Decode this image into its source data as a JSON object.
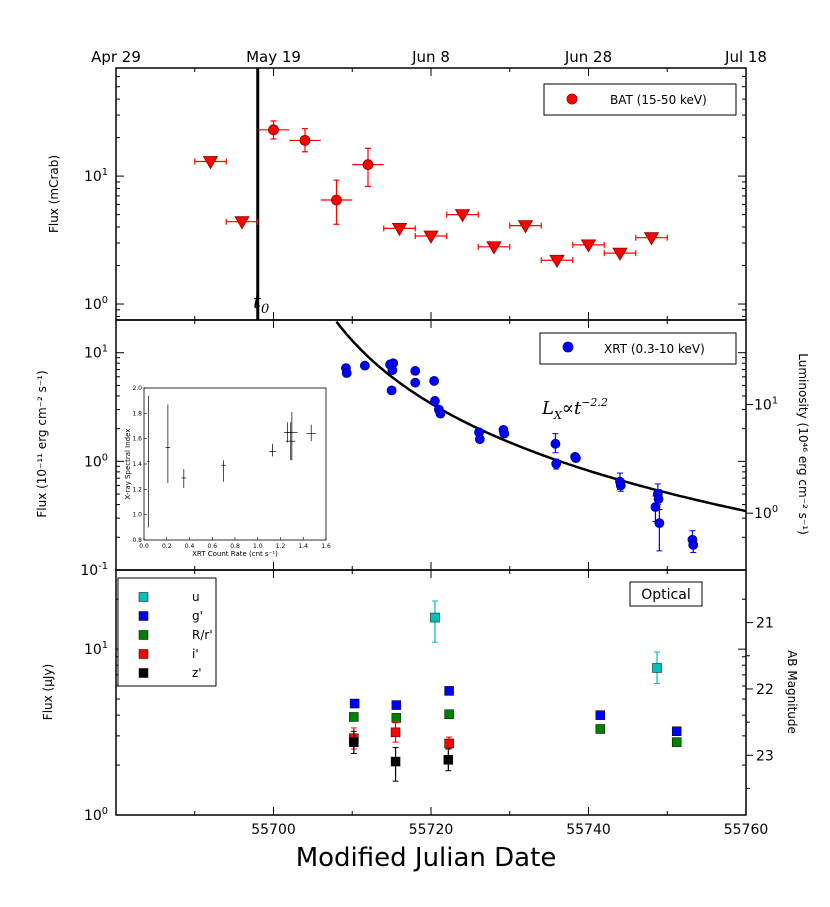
{
  "colors": {
    "bat": "#ff0000",
    "bat_edge": "#8b0000",
    "xrt": "#0000ff",
    "u": "#00bfbf",
    "g": "#0000ff",
    "r": "#008000",
    "i": "#ff0000",
    "z": "#000000"
  },
  "chart_data": [
    {
      "id": "bat",
      "type": "scatter",
      "ylabel": "Flux (mCrab)",
      "yscale": "log",
      "ylim": [
        0.75,
        70
      ],
      "xlim": [
        55680,
        55760
      ],
      "x_ticks_top": [
        {
          "x": 55680,
          "label": "Apr 29"
        },
        {
          "x": 55700,
          "label": "May 19"
        },
        {
          "x": 55720,
          "label": "Jun 8"
        },
        {
          "x": 55740,
          "label": "Jun 28"
        },
        {
          "x": 55760,
          "label": "Jul 18"
        }
      ],
      "y_ticks": [
        {
          "v": 1,
          "base": "10",
          "exp": "0"
        },
        {
          "v": 10,
          "base": "10",
          "exp": "1"
        }
      ],
      "legend": "BAT (15-50 keV)",
      "t0_label": "t",
      "t0_sub": "0",
      "t0_mjd": 55698,
      "detections": [
        {
          "x": 55700.0,
          "xerr": 2.0,
          "y": 23,
          "ylo": 19.5,
          "yhi": 27
        },
        {
          "x": 55704.0,
          "xerr": 2.0,
          "y": 19,
          "ylo": 15.5,
          "yhi": 23.5
        },
        {
          "x": 55708.0,
          "xerr": 2.0,
          "y": 6.5,
          "ylo": 4.2,
          "yhi": 9.3
        },
        {
          "x": 55712.0,
          "xerr": 2.0,
          "y": 12.3,
          "ylo": 8.3,
          "yhi": 16.5
        }
      ],
      "upper_limits": [
        {
          "x": 55692.0,
          "xerr": 2.0,
          "y": 13
        },
        {
          "x": 55696.0,
          "xerr": 2.0,
          "y": 4.4
        },
        {
          "x": 55716.0,
          "xerr": 2.0,
          "y": 3.9
        },
        {
          "x": 55720.0,
          "xerr": 2.0,
          "y": 3.4
        },
        {
          "x": 55724.0,
          "xerr": 2.0,
          "y": 5.0
        },
        {
          "x": 55728.0,
          "xerr": 2.0,
          "y": 2.8
        },
        {
          "x": 55732.0,
          "xerr": 2.0,
          "y": 4.1
        },
        {
          "x": 55736.0,
          "xerr": 2.0,
          "y": 2.2
        },
        {
          "x": 55740.0,
          "xerr": 2.0,
          "y": 2.9
        },
        {
          "x": 55744.0,
          "xerr": 2.0,
          "y": 2.5
        },
        {
          "x": 55748.0,
          "xerr": 2.0,
          "y": 3.3
        }
      ]
    },
    {
      "id": "xrt",
      "type": "scatter",
      "ylabel": "Flux (10⁻¹¹ erg cm⁻² s⁻¹)",
      "ylabel_right": "Luminosity (10⁴⁶ erg cm⁻² s⁻¹)",
      "yscale": "log",
      "ylim": [
        0.1,
        20
      ],
      "y_ticks": [
        {
          "v": 0.1,
          "base": "10",
          "exp": "-1"
        },
        {
          "v": 1,
          "base": "10",
          "exp": "0"
        },
        {
          "v": 10,
          "base": "10",
          "exp": "1"
        }
      ],
      "y_ticks_right": [
        {
          "lum": 1,
          "base": "10",
          "exp": "0"
        },
        {
          "lum": 10,
          "base": "10",
          "exp": "1"
        }
      ],
      "lum_per_flux": 3.0,
      "legend": "XRT (0.3-10 keV)",
      "fit_label": "L",
      "fit_sub": "X",
      "fit_rel": "∝",
      "fit_t": "t",
      "fit_exp": "−2.2",
      "fit": {
        "t0": 55698,
        "norm": 4.2,
        "ref": 20,
        "index": -2.2
      },
      "points": [
        {
          "x": 55709.2,
          "y": 7.2,
          "ylo": 6.6,
          "yhi": 7.8
        },
        {
          "x": 55709.3,
          "y": 6.5,
          "ylo": 6.0,
          "yhi": 7.0
        },
        {
          "x": 55711.6,
          "y": 7.6,
          "ylo": 7.1,
          "yhi": 8.1
        },
        {
          "x": 55714.8,
          "y": 7.8,
          "ylo": 7.3,
          "yhi": 8.3
        },
        {
          "x": 55715.0,
          "y": 4.5,
          "ylo": 4.2,
          "yhi": 4.8
        },
        {
          "x": 55715.2,
          "y": 8.0,
          "ylo": 7.5,
          "yhi": 8.5
        },
        {
          "x": 55715.1,
          "y": 6.9,
          "ylo": 6.5,
          "yhi": 7.3
        },
        {
          "x": 55718.0,
          "y": 6.8,
          "ylo": 6.4,
          "yhi": 7.2
        },
        {
          "x": 55718.0,
          "y": 5.3,
          "ylo": 5.0,
          "yhi": 5.6
        },
        {
          "x": 55720.4,
          "y": 5.5,
          "ylo": 5.2,
          "yhi": 5.8
        },
        {
          "x": 55720.5,
          "y": 3.6,
          "ylo": 3.3,
          "yhi": 3.9
        },
        {
          "x": 55721.0,
          "y": 3.0,
          "ylo": 2.8,
          "yhi": 3.2
        },
        {
          "x": 55721.2,
          "y": 2.75,
          "ylo": 2.55,
          "yhi": 2.95
        },
        {
          "x": 55726.1,
          "y": 1.85,
          "ylo": 1.75,
          "yhi": 1.95
        },
        {
          "x": 55726.2,
          "y": 1.6,
          "ylo": 1.5,
          "yhi": 1.7
        },
        {
          "x": 55729.2,
          "y": 1.95,
          "ylo": 1.85,
          "yhi": 2.05
        },
        {
          "x": 55729.3,
          "y": 1.8,
          "ylo": 1.7,
          "yhi": 1.9
        },
        {
          "x": 55735.8,
          "y": 1.45,
          "ylo": 1.2,
          "yhi": 1.8
        },
        {
          "x": 55735.9,
          "y": 0.95,
          "ylo": 0.85,
          "yhi": 1.05
        },
        {
          "x": 55738.3,
          "y": 1.1,
          "ylo": 1.05,
          "yhi": 1.15
        },
        {
          "x": 55738.4,
          "y": 1.07,
          "ylo": 1.02,
          "yhi": 1.12
        },
        {
          "x": 55744.0,
          "y": 0.65,
          "ylo": 0.55,
          "yhi": 0.78
        },
        {
          "x": 55744.1,
          "y": 0.6,
          "ylo": 0.53,
          "yhi": 0.68
        },
        {
          "x": 55748.5,
          "y": 0.38,
          "ylo": 0.28,
          "yhi": 0.48
        },
        {
          "x": 55748.8,
          "y": 0.5,
          "ylo": 0.4,
          "yhi": 0.62
        },
        {
          "x": 55748.9,
          "y": 0.45,
          "ylo": 0.36,
          "yhi": 0.55
        },
        {
          "x": 55749.0,
          "y": 0.27,
          "ylo": 0.15,
          "yhi": 0.36
        },
        {
          "x": 55753.2,
          "y": 0.19,
          "ylo": 0.16,
          "yhi": 0.23
        },
        {
          "x": 55753.3,
          "y": 0.17,
          "ylo": 0.145,
          "yhi": 0.2
        }
      ],
      "inset": {
        "xlabel": "XRT Count Rate (cnt s⁻¹)",
        "ylabel": "X-ray Spectral Index",
        "xlim": [
          0,
          1.6
        ],
        "ylim": [
          0.8,
          2.0
        ],
        "x_ticks": [
          "0.0",
          "0.2",
          "0.4",
          "0.6",
          "0.8",
          "1.0",
          "1.2",
          "1.4",
          "1.6"
        ],
        "y_ticks": [
          "0.8",
          "1.0",
          "1.2",
          "1.4",
          "1.6",
          "1.8",
          "2.0"
        ],
        "points": [
          {
            "x": 0.04,
            "y": 1.42,
            "xerr": 0.01,
            "ylo": 0.9,
            "yhi": 1.94
          },
          {
            "x": 0.21,
            "y": 1.53,
            "xerr": 0.02,
            "ylo": 1.25,
            "yhi": 1.87
          },
          {
            "x": 0.35,
            "y": 1.29,
            "xerr": 0.02,
            "ylo": 1.21,
            "yhi": 1.36
          },
          {
            "x": 0.7,
            "y": 1.39,
            "xerr": 0.02,
            "ylo": 1.26,
            "yhi": 1.43
          },
          {
            "x": 1.13,
            "y": 1.5,
            "xerr": 0.03,
            "ylo": 1.46,
            "yhi": 1.56
          },
          {
            "x": 1.26,
            "y": 1.65,
            "xerr": 0.03,
            "ylo": 1.57,
            "yhi": 1.73
          },
          {
            "x": 1.29,
            "y": 1.58,
            "xerr": 0.04,
            "ylo": 1.43,
            "yhi": 1.73
          },
          {
            "x": 1.3,
            "y": 1.65,
            "xerr": 0.05,
            "ylo": 1.43,
            "yhi": 1.81
          },
          {
            "x": 1.47,
            "y": 1.64,
            "xerr": 0.04,
            "ylo": 1.58,
            "yhi": 1.71
          }
        ]
      }
    },
    {
      "id": "optical",
      "type": "scatter",
      "ylabel": "Flux (μJy)",
      "ylabel_right": "AB Magnitude",
      "xlabel": "Modified Julian Date",
      "yscale": "log",
      "ylim": [
        1.0,
        30
      ],
      "x_ticks": [
        "55700",
        "55720",
        "55740",
        "55760"
      ],
      "x_tick_vals": [
        55700,
        55720,
        55740,
        55760
      ],
      "y_ticks": [
        {
          "v": 1,
          "base": "10",
          "exp": "0"
        },
        {
          "v": 10,
          "base": "10",
          "exp": "1"
        }
      ],
      "mag_ticks": [
        "21",
        "22",
        "23"
      ],
      "mag_vals": [
        21,
        22,
        23
      ],
      "legend_box": "Optical",
      "legend": [
        {
          "band": "u",
          "label": "u"
        },
        {
          "band": "g",
          "label": "g'"
        },
        {
          "band": "r",
          "label": "R/r'"
        },
        {
          "band": "i",
          "label": "i'"
        },
        {
          "band": "z",
          "label": "z'"
        }
      ],
      "series": [
        {
          "band": "u",
          "points": [
            {
              "x": 55720.5,
              "y": 15.5,
              "ylo": 11.0,
              "yhi": 19.5
            },
            {
              "x": 55748.7,
              "y": 7.7,
              "ylo": 6.2,
              "yhi": 9.6
            }
          ]
        },
        {
          "band": "g",
          "points": [
            {
              "x": 55710.3,
              "y": 4.7
            },
            {
              "x": 55715.6,
              "y": 4.6
            },
            {
              "x": 55722.3,
              "y": 5.6
            },
            {
              "x": 55741.5,
              "y": 4.0
            },
            {
              "x": 55751.2,
              "y": 3.2
            }
          ]
        },
        {
          "band": "r",
          "points": [
            {
              "x": 55710.2,
              "y": 3.9
            },
            {
              "x": 55715.6,
              "y": 3.85
            },
            {
              "x": 55722.3,
              "y": 4.05
            },
            {
              "x": 55741.5,
              "y": 3.3
            },
            {
              "x": 55751.2,
              "y": 2.75
            }
          ]
        },
        {
          "band": "i",
          "points": [
            {
              "x": 55710.2,
              "y": 2.9,
              "ylo": 2.5,
              "yhi": 3.35
            },
            {
              "x": 55715.5,
              "y": 3.15,
              "ylo": 2.75,
              "yhi": 3.6
            },
            {
              "x": 55722.3,
              "y": 2.7,
              "ylo": 2.5,
              "yhi": 2.95
            }
          ]
        },
        {
          "band": "z",
          "points": [
            {
              "x": 55710.2,
              "y": 2.75,
              "ylo": 2.35,
              "yhi": 3.2
            },
            {
              "x": 55715.5,
              "y": 2.1,
              "ylo": 1.6,
              "yhi": 2.55
            },
            {
              "x": 55722.2,
              "y": 2.15,
              "ylo": 1.85,
              "yhi": 2.5
            }
          ]
        }
      ]
    }
  ]
}
